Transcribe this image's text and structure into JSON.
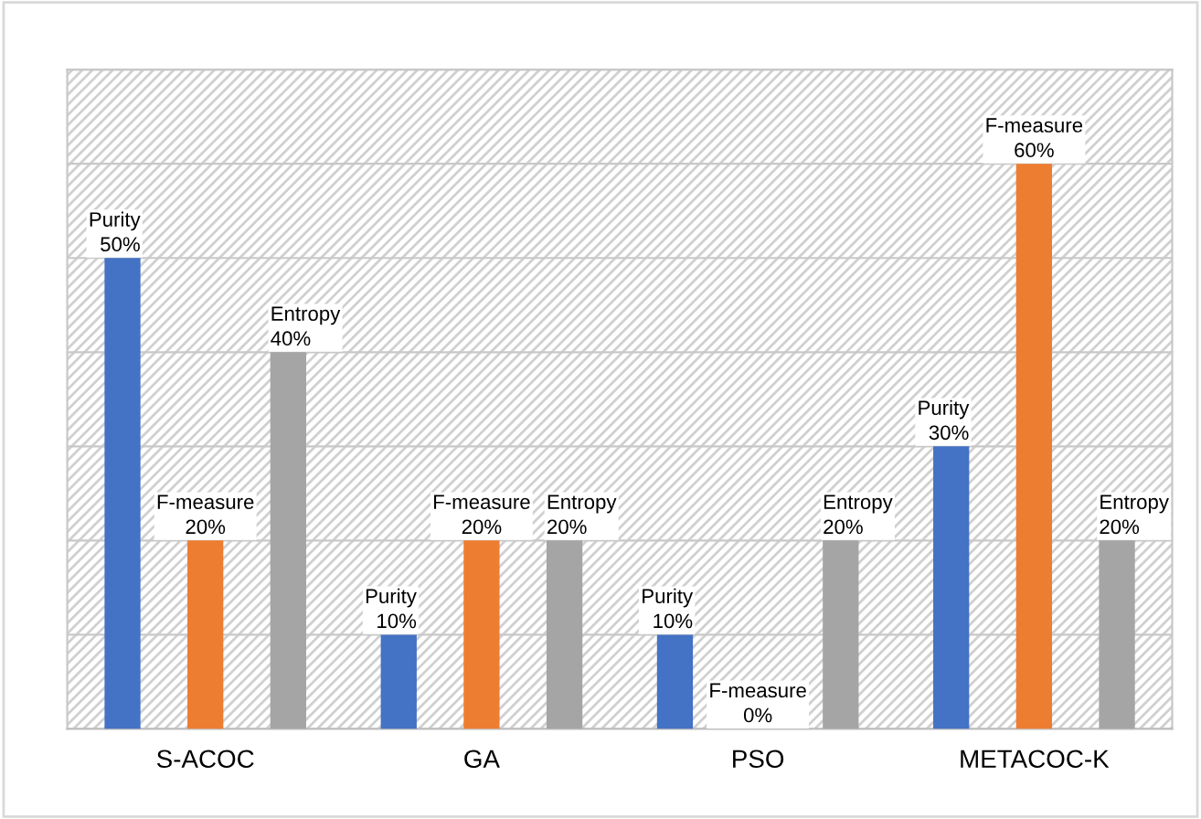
{
  "chart_data": {
    "type": "bar",
    "categories": [
      "S-ACOC",
      "GA",
      "PSO",
      "METACOC-K"
    ],
    "series": [
      {
        "name": "Purity",
        "color": "#4472c4",
        "values": [
          50,
          10,
          10,
          30
        ],
        "value_labels": [
          "50%",
          "10%",
          "10%",
          "30%"
        ]
      },
      {
        "name": "F-measure",
        "color": "#ed7d31",
        "values": [
          20,
          20,
          0,
          60
        ],
        "value_labels": [
          "20%",
          "20%",
          "0%",
          "60%"
        ]
      },
      {
        "name": "Entropy",
        "color": "#a5a5a5",
        "values": [
          40,
          20,
          20,
          20
        ],
        "value_labels": [
          "40%",
          "20%",
          "20%",
          "20%"
        ]
      }
    ],
    "ylim": [
      0,
      70
    ],
    "yticks": [
      {
        "value": 0,
        "label": null
      },
      {
        "value": 10,
        "label": null
      },
      {
        "value": 20,
        "label": null
      },
      {
        "value": 30,
        "label": null
      },
      {
        "value": 40,
        "label": null
      },
      {
        "value": 50,
        "label": null
      },
      {
        "value": 60,
        "label": null
      },
      {
        "value": 70,
        "label": null
      }
    ],
    "tick_labels": "x",
    "grid": "y",
    "legend": false
  }
}
